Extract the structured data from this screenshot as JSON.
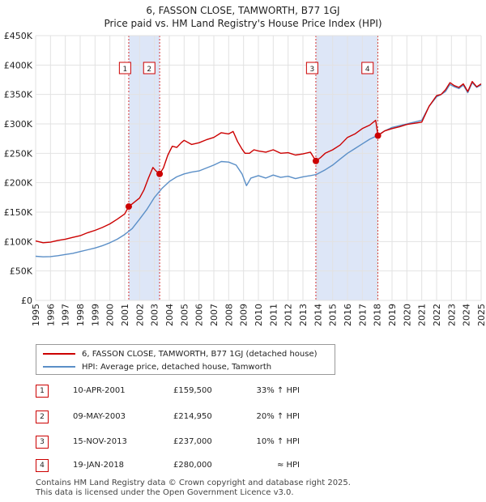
{
  "title_line1": "6, FASSON CLOSE, TAMWORTH, B77 1GJ",
  "title_line2": "Price paid vs. HM Land Registry's House Price Index (HPI)",
  "legend": {
    "red_label": "6, FASSON CLOSE, TAMWORTH, B77 1GJ (detached house)",
    "blue_label": "HPI: Average price, detached house, Tamworth"
  },
  "colors": {
    "red": "#cc0000",
    "blue": "#5b8fc7",
    "shade": "#dde6f7",
    "grid": "#e2e2e2"
  },
  "transactions": [
    {
      "num": "1",
      "date": "10-APR-2001",
      "price": "£159,500",
      "hpi": "33% ↑ HPI"
    },
    {
      "num": "2",
      "date": "09-MAY-2003",
      "price": "£214,950",
      "hpi": "20% ↑ HPI"
    },
    {
      "num": "3",
      "date": "15-NOV-2013",
      "price": "£237,000",
      "hpi": "10% ↑ HPI"
    },
    {
      "num": "4",
      "date": "19-JAN-2018",
      "price": "£280,000",
      "hpi": "≈ HPI"
    }
  ],
  "footer": {
    "line1": "Contains HM Land Registry data © Crown copyright and database right 2025.",
    "line2": "This data is licensed under the Open Government Licence v3.0."
  },
  "chart_data": {
    "type": "line",
    "title": "6, FASSON CLOSE, TAMWORTH, B77 1GJ — Price paid vs. HM Land Registry's House Price Index (HPI)",
    "xlabel": "",
    "ylabel": "",
    "xlim": [
      1995,
      2025
    ],
    "ylim": [
      0,
      450000
    ],
    "x_ticks": [
      1995,
      1996,
      1997,
      1998,
      1999,
      2000,
      2001,
      2002,
      2003,
      2004,
      2005,
      2006,
      2007,
      2008,
      2009,
      2010,
      2011,
      2012,
      2013,
      2014,
      2015,
      2016,
      2017,
      2018,
      2019,
      2020,
      2021,
      2022,
      2023,
      2024,
      2025
    ],
    "y_ticks": [
      {
        "value": 0,
        "label": "£0"
      },
      {
        "value": 50000,
        "label": "£50K"
      },
      {
        "value": 100000,
        "label": "£100K"
      },
      {
        "value": 150000,
        "label": "£150K"
      },
      {
        "value": 200000,
        "label": "£200K"
      },
      {
        "value": 250000,
        "label": "£250K"
      },
      {
        "value": 300000,
        "label": "£300K"
      },
      {
        "value": 350000,
        "label": "£350K"
      },
      {
        "value": 400000,
        "label": "£400K"
      },
      {
        "value": 450000,
        "label": "£450K"
      }
    ],
    "shaded_ranges": [
      [
        2001.27,
        2003.35
      ],
      [
        2013.87,
        2018.05
      ]
    ],
    "series": [
      {
        "name": "6, FASSON CLOSE, TAMWORTH, B77 1GJ (detached house)",
        "color": "#cc0000",
        "x": [
          1995.0,
          1995.5,
          1996.0,
          1996.5,
          1997.0,
          1997.5,
          1998.0,
          1998.5,
          1999.0,
          1999.5,
          2000.0,
          2000.5,
          2001.0,
          2001.27,
          2001.5,
          2002.0,
          2002.3,
          2002.6,
          2002.9,
          2003.1,
          2003.35,
          2003.6,
          2003.9,
          2004.2,
          2004.5,
          2004.8,
          2005.0,
          2005.5,
          2006.0,
          2006.5,
          2007.0,
          2007.5,
          2008.0,
          2008.3,
          2008.6,
          2008.9,
          2009.1,
          2009.4,
          2009.7,
          2010.0,
          2010.5,
          2011.0,
          2011.5,
          2012.0,
          2012.5,
          2013.0,
          2013.5,
          2013.87,
          2014.2,
          2014.5,
          2015.0,
          2015.5,
          2016.0,
          2016.5,
          2017.0,
          2017.5,
          2017.9,
          2018.05,
          2018.5,
          2019.0,
          2019.5,
          2020.0,
          2020.5,
          2021.0,
          2021.5,
          2022.0,
          2022.3,
          2022.6,
          2022.9,
          2023.2,
          2023.5,
          2023.8,
          2024.1,
          2024.4,
          2024.7,
          2025.0
        ],
        "y": [
          101000,
          98000,
          99000,
          102000,
          104000,
          107000,
          110000,
          115000,
          119000,
          124000,
          130000,
          138000,
          147000,
          159500,
          164000,
          174000,
          188000,
          208000,
          226000,
          220000,
          214950,
          225000,
          247000,
          262000,
          260000,
          268000,
          272000,
          265000,
          268000,
          273000,
          277000,
          285000,
          283000,
          287000,
          270000,
          257000,
          250000,
          250000,
          256000,
          254000,
          252000,
          256000,
          250000,
          251000,
          247000,
          249000,
          252000,
          237000,
          243000,
          250000,
          256000,
          264000,
          277000,
          283000,
          292000,
          298000,
          306000,
          280000,
          288000,
          292000,
          295000,
          299000,
          301000,
          303000,
          330000,
          348000,
          350000,
          358000,
          370000,
          365000,
          362000,
          368000,
          355000,
          372000,
          363000,
          368000
        ]
      },
      {
        "name": "HPI: Average price, detached house, Tamworth",
        "color": "#5b8fc7",
        "x": [
          1995.0,
          1995.5,
          1996.0,
          1996.5,
          1997.0,
          1997.5,
          1998.0,
          1998.5,
          1999.0,
          1999.5,
          2000.0,
          2000.5,
          2001.0,
          2001.5,
          2002.0,
          2002.5,
          2003.0,
          2003.5,
          2004.0,
          2004.5,
          2005.0,
          2005.5,
          2006.0,
          2006.5,
          2007.0,
          2007.5,
          2008.0,
          2008.5,
          2008.9,
          2009.2,
          2009.5,
          2010.0,
          2010.5,
          2011.0,
          2011.5,
          2012.0,
          2012.5,
          2013.0,
          2013.5,
          2013.9,
          2014.5,
          2015.0,
          2015.5,
          2016.0,
          2016.5,
          2017.0,
          2017.5,
          2018.0,
          2018.5,
          2019.0,
          2019.5,
          2020.0,
          2020.5,
          2021.0,
          2021.5,
          2022.0,
          2022.3,
          2022.6,
          2022.9,
          2023.2,
          2023.5,
          2023.8,
          2024.1,
          2024.4,
          2024.7,
          2025.0
        ],
        "y": [
          75000,
          74000,
          74500,
          76000,
          78000,
          80000,
          83000,
          86000,
          89000,
          93000,
          98000,
          104000,
          112000,
          122000,
          138000,
          155000,
          175000,
          190000,
          202000,
          210000,
          215000,
          218000,
          220000,
          225000,
          230000,
          236000,
          235000,
          230000,
          215000,
          195000,
          208000,
          212000,
          208000,
          213000,
          209000,
          211000,
          207000,
          210000,
          212000,
          214000,
          222000,
          230000,
          240000,
          250000,
          258000,
          266000,
          274000,
          280000,
          288000,
          294000,
          297000,
          300000,
          303000,
          306000,
          330000,
          346000,
          350000,
          355000,
          367000,
          363000,
          360000,
          366000,
          353000,
          370000,
          362000,
          366000
        ]
      }
    ],
    "sale_points": [
      {
        "label": "1",
        "x": 2001.27,
        "y": 159500
      },
      {
        "label": "2",
        "x": 2003.35,
        "y": 214950
      },
      {
        "label": "3",
        "x": 2013.87,
        "y": 237000
      },
      {
        "label": "4",
        "x": 2018.05,
        "y": 280000
      }
    ]
  }
}
